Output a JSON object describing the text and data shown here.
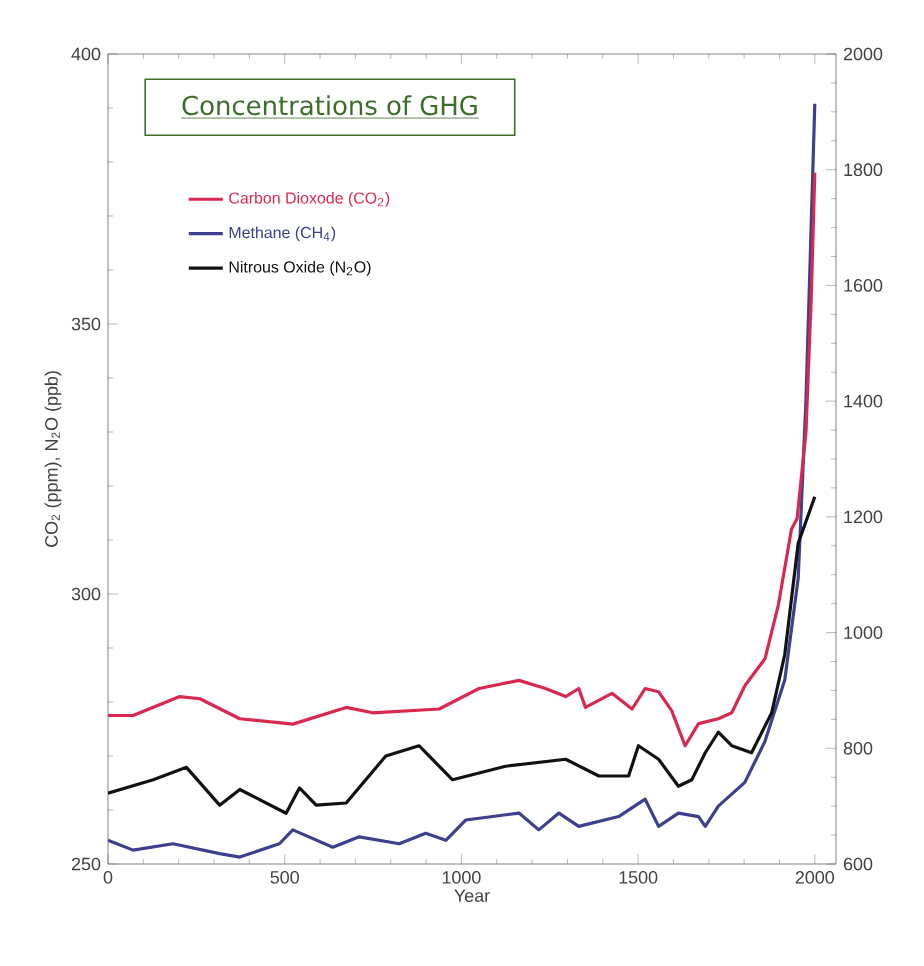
{
  "chart_data": {
    "type": "line",
    "title": "Concentrations of GHG",
    "xlabel": "Year",
    "ylabel": "CO$_{2}$ (ppm), N$_{2}$O (ppb)",
    "xlim": [
      0,
      2060
    ],
    "xticks": [
      0,
      500,
      1000,
      1500,
      2000
    ],
    "ylim": [
      250,
      400
    ],
    "yticks": [
      250,
      300,
      350,
      400
    ],
    "y2lim": [
      600,
      2000
    ],
    "y2ticks": [
      600,
      800,
      1000,
      1200,
      1400,
      1600,
      1800,
      2000
    ],
    "grid": false,
    "legend": "top left",
    "marker": "none",
    "line_style": "solid",
    "series": [
      {
        "name": "Carbon Dioxode (CO$_{2}$)",
        "color": "#d8284f",
        "x": [
          0,
          71,
          203,
          260,
          373,
          523,
          674,
          749,
          937,
          1050,
          1163,
          1238,
          1295,
          1332,
          1351,
          1426,
          1483,
          1520,
          1558,
          1595,
          1633,
          1671,
          1727,
          1765,
          1802,
          1859,
          1897,
          1934,
          1950,
          1975,
          1990,
          2000
        ],
        "values": [
          277.5,
          277.5,
          281,
          280.6,
          276.9,
          275.9,
          279,
          278,
          278.7,
          282.5,
          284,
          282.5,
          281,
          282.5,
          279,
          281.6,
          278.7,
          282.5,
          281.9,
          278.4,
          271.9,
          276,
          276.9,
          278,
          283,
          288,
          298,
          312,
          314,
          330,
          355,
          378
        ]
      },
      {
        "name": "Methane (CH$_{4}$)",
        "color": "#3d3f8f",
        "axis": "y2",
        "x": [
          0,
          71,
          184,
          316,
          373,
          485,
          523,
          636,
          711,
          824,
          899,
          956,
          1012,
          1163,
          1219,
          1276,
          1332,
          1445,
          1520,
          1558,
          1614,
          1671,
          1690,
          1727,
          1802,
          1859,
          1915,
          1953,
          1975,
          2000
        ],
        "values": [
          641,
          624,
          635,
          618,
          612,
          635,
          659,
          629,
          647,
          635,
          653,
          641,
          676,
          688,
          659,
          688,
          665,
          682,
          712,
          665,
          688,
          682,
          665,
          700,
          741,
          812,
          918,
          1094,
          1402,
          1914
        ]
      },
      {
        "name": "Nitrous Oxide (N$_{2}$O)",
        "color": "#111111",
        "x": [
          0,
          128,
          222,
          316,
          373,
          504,
          542,
          589,
          674,
          786,
          880,
          975,
          1125,
          1295,
          1389,
          1473,
          1501,
          1558,
          1614,
          1652,
          1690,
          1727,
          1765,
          1821,
          1878,
          1915,
          1953,
          2000
        ],
        "values": [
          263.1,
          265.6,
          267.9,
          260.9,
          263.8,
          259.4,
          264.1,
          260.9,
          261.3,
          270,
          271.9,
          265.6,
          268.1,
          269.4,
          266.3,
          266.3,
          271.9,
          269.4,
          264.4,
          265.6,
          270.6,
          274.4,
          271.9,
          270.6,
          278,
          288.8,
          309.4,
          318
        ]
      }
    ]
  }
}
